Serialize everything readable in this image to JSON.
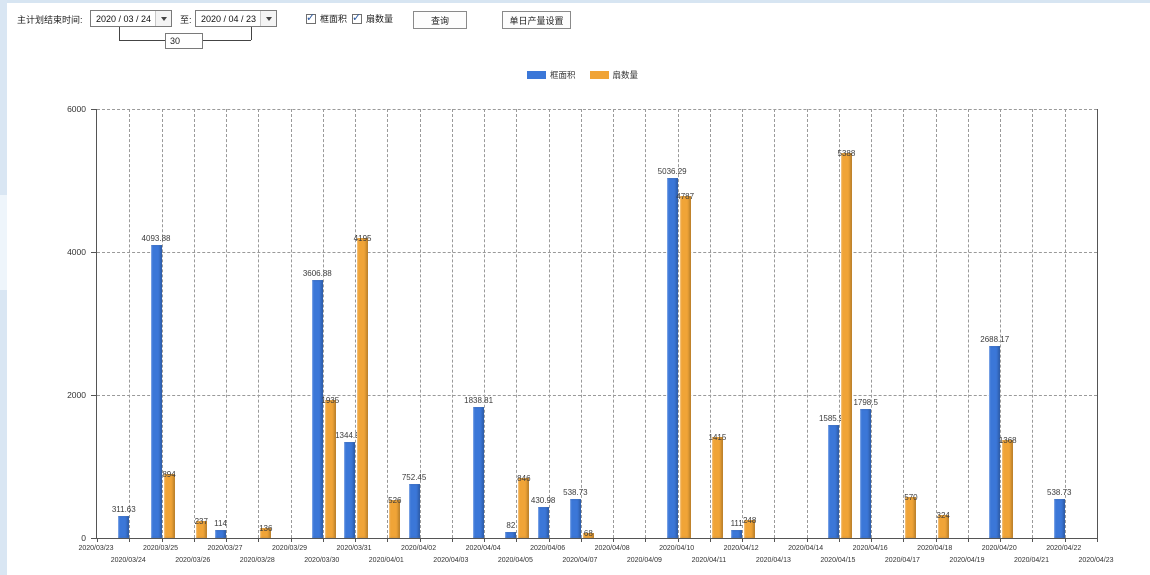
{
  "topbar": {
    "label": "主计划结束时间:",
    "start_date": "2020 / 03 / 24",
    "to_label": "至:",
    "end_date": "2020 / 04 / 23",
    "days_between": "30",
    "checkbox_frame_area": "框面积",
    "checkbox_fan_count": "扇数量",
    "query_button": "查询",
    "daily_output_button": "单日产量设置"
  },
  "chart_data": {
    "type": "bar",
    "title": "",
    "xlabel": "",
    "ylabel": "",
    "ylim": [
      0,
      6000
    ],
    "yticks": [
      0,
      2000,
      4000,
      6000
    ],
    "grid": true,
    "legend_position": "top-center",
    "categories": [
      "2020/03/23",
      "2020/03/24",
      "2020/03/25",
      "2020/03/26",
      "2020/03/27",
      "2020/03/28",
      "2020/03/29",
      "2020/03/30",
      "2020/03/31",
      "2020/04/01",
      "2020/04/02",
      "2020/04/03",
      "2020/04/04",
      "2020/04/05",
      "2020/04/06",
      "2020/04/07",
      "2020/04/08",
      "2020/04/09",
      "2020/04/10",
      "2020/04/11",
      "2020/04/12",
      "2020/04/13",
      "2020/04/14",
      "2020/04/15",
      "2020/04/16",
      "2020/04/17",
      "2020/04/18",
      "2020/04/19",
      "2020/04/20",
      "2020/04/21",
      "2020/04/22",
      "2020/04/23"
    ],
    "series": [
      {
        "name": "框面积",
        "color": "#3b77d8",
        "values": [
          null,
          311.63,
          4093.88,
          null,
          114,
          null,
          null,
          3606.88,
          1344.95,
          null,
          752.45,
          null,
          1838.81,
          82,
          430.98,
          538.73,
          null,
          null,
          5036.29,
          null,
          111,
          null,
          null,
          1585.96,
          1798.5,
          null,
          null,
          null,
          2688.17,
          null,
          538.73,
          null
        ]
      },
      {
        "name": "扇数量",
        "color": "#f0a437",
        "values": [
          null,
          null,
          894,
          237,
          null,
          136,
          null,
          1935,
          4195,
          526,
          null,
          null,
          null,
          846,
          null,
          68,
          null,
          null,
          4787,
          1415,
          248,
          null,
          null,
          5388,
          null,
          570,
          324,
          null,
          1368,
          null,
          null,
          null
        ]
      }
    ]
  }
}
